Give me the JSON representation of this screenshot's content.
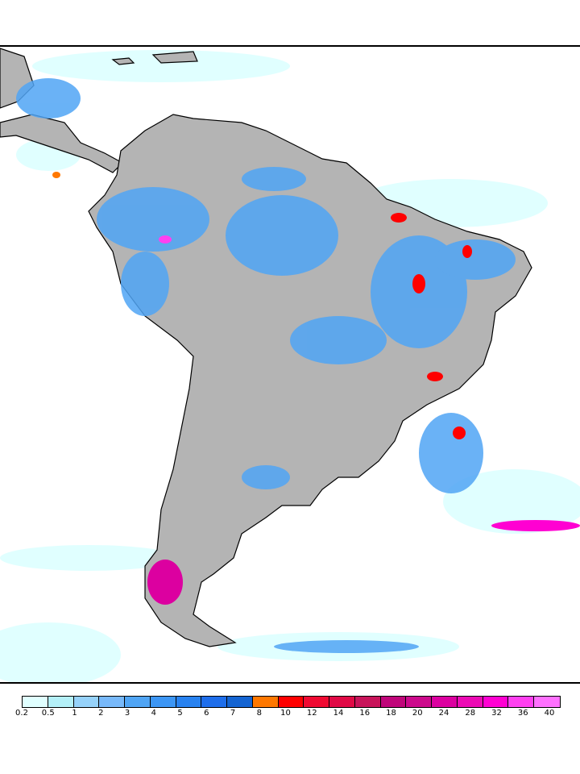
{
  "map": {
    "land_color": "#b4b4b4",
    "ocean_color": "#ffffff",
    "border_color": "#000000"
  },
  "legend": {
    "labels": [
      "0.2",
      "0.5",
      "1",
      "2",
      "3",
      "4",
      "5",
      "6",
      "7",
      "8",
      "10",
      "12",
      "14",
      "16",
      "18",
      "20",
      "24",
      "28",
      "32",
      "36",
      "40"
    ],
    "colors": [
      "#e0ffff",
      "#b4f0f8",
      "#96d2fa",
      "#78b9fa",
      "#50a5f5",
      "#3c96f5",
      "#2882f0",
      "#1e6eeb",
      "#1464d2",
      "#ff7800",
      "#ff0000",
      "#f00a32",
      "#e10a46",
      "#c8145a",
      "#c0067a",
      "#cc0a8c",
      "#dc00a0",
      "#ec0ab4",
      "#ff00d2",
      "#ff40f0",
      "#ff70ff"
    ]
  }
}
